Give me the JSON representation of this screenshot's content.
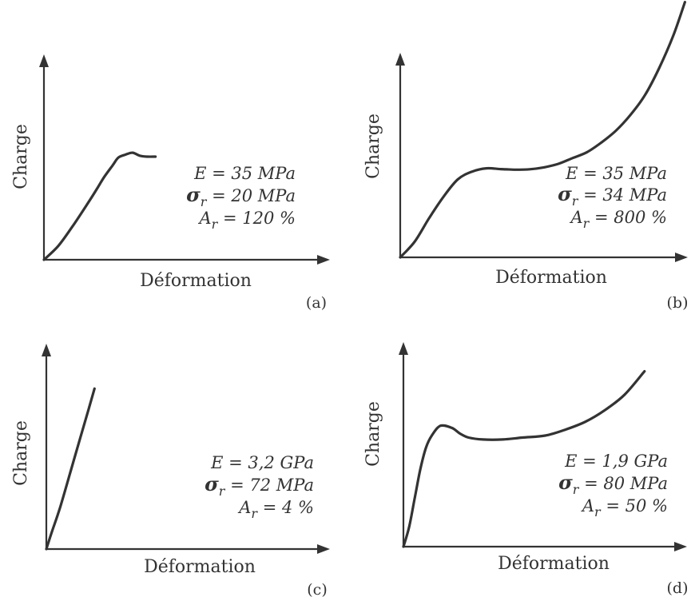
{
  "chart_data": [
    {
      "type": "line",
      "panel_label": "(a)",
      "xlabel": "Déformation",
      "ylabel": "Charge",
      "properties": {
        "E_symbol": "E",
        "E_value": " = 35 MPa",
        "sigma_symbol": "σ",
        "sigma_sub": "r",
        "sigma_value": " = 20 MPa",
        "A_symbol": "A",
        "A_sub": "r",
        "A_value": " = 120 %"
      },
      "series": [
        {
          "x": [
            0,
            0.05,
            0.1,
            0.15,
            0.185,
            0.21,
            0.24,
            0.26,
            0.285,
            0.31,
            0.335,
            0.36,
            0.39
          ],
          "y": [
            0,
            0.07,
            0.17,
            0.28,
            0.36,
            0.42,
            0.48,
            0.52,
            0.535,
            0.545,
            0.53,
            0.525,
            0.525
          ]
        }
      ]
    },
    {
      "type": "line",
      "panel_label": "(b)",
      "xlabel": "Déformation",
      "ylabel": "Charge",
      "properties": {
        "E_symbol": "E",
        "E_value": " = 35 MPa",
        "sigma_symbol": "σ",
        "sigma_sub": "r",
        "sigma_value": " = 34 MPa",
        "A_symbol": "A",
        "A_sub": "r",
        "A_value": " = 800 %"
      },
      "series": [
        {
          "x": [
            0,
            0.05,
            0.1,
            0.15,
            0.2,
            0.25,
            0.3,
            0.35,
            0.4,
            0.45,
            0.5,
            0.55,
            0.6,
            0.65,
            0.7,
            0.75,
            0.8,
            0.85,
            0.9,
            0.95,
            0.99
          ],
          "y": [
            0,
            0.08,
            0.2,
            0.31,
            0.4,
            0.44,
            0.457,
            0.453,
            0.45,
            0.452,
            0.462,
            0.48,
            0.51,
            0.54,
            0.59,
            0.65,
            0.73,
            0.83,
            0.97,
            1.14,
            1.31
          ]
        }
      ]
    },
    {
      "type": "line",
      "panel_label": "(c)",
      "xlabel": "Déformation",
      "ylabel": "Charge",
      "properties": {
        "E_symbol": "E",
        "E_value": " = 3,2 GPa",
        "sigma_symbol": "σ",
        "sigma_sub": "r",
        "sigma_value": " = 72 MPa",
        "A_symbol": "A",
        "A_sub": "r",
        "A_value": " = 4 %"
      },
      "series": [
        {
          "x": [
            0,
            0.02,
            0.05,
            0.1,
            0.15,
            0.17
          ],
          "y": [
            0,
            0.09,
            0.22,
            0.47,
            0.72,
            0.82
          ]
        }
      ]
    },
    {
      "type": "line",
      "panel_label": "(d)",
      "xlabel": "Déformation",
      "ylabel": "Charge",
      "properties": {
        "E_symbol": "E",
        "E_value": " = 1,9 GPa",
        "sigma_symbol": "σ",
        "sigma_sub": "r",
        "sigma_value": " = 80 MPa",
        "A_symbol": "A",
        "A_sub": "r",
        "A_value": " = 50 %"
      },
      "series": [
        {
          "x": [
            0,
            0.02,
            0.04,
            0.06,
            0.08,
            0.1,
            0.13,
            0.17,
            0.2,
            0.23,
            0.28,
            0.35,
            0.42,
            0.5,
            0.57,
            0.64,
            0.71,
            0.78,
            0.85
          ],
          "y": [
            0,
            0.1,
            0.25,
            0.4,
            0.51,
            0.57,
            0.62,
            0.61,
            0.58,
            0.56,
            0.55,
            0.55,
            0.56,
            0.57,
            0.6,
            0.64,
            0.7,
            0.78,
            0.9
          ]
        }
      ]
    }
  ]
}
